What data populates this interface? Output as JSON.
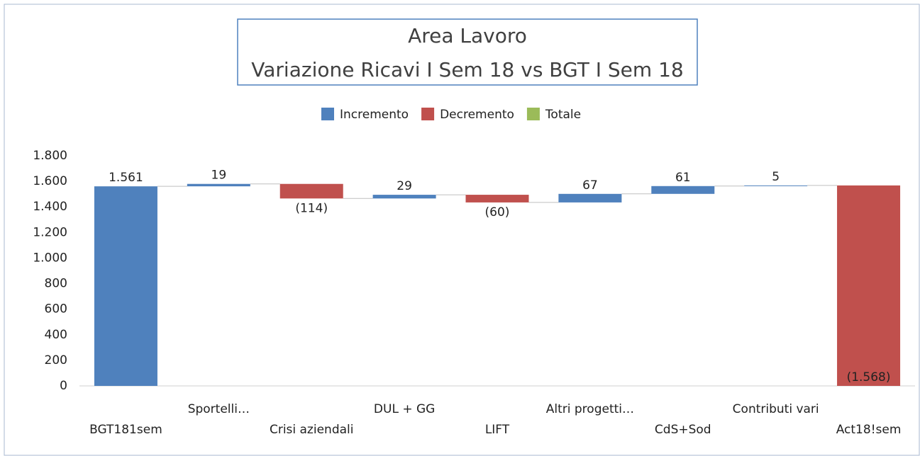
{
  "chart_data": {
    "type": "waterfall",
    "title": "Area Lavoro",
    "subtitle": "Variazione Ricavi I Sem 18 vs BGT I Sem 18",
    "legend": [
      {
        "name": "Incremento",
        "color": "#4f81bd"
      },
      {
        "name": "Decremento",
        "color": "#c0504d"
      },
      {
        "name": "Totale",
        "color": "#9bbb59"
      }
    ],
    "categories": [
      "BGT181sem",
      "Sportelli…",
      "Crisi aziendali",
      "DUL + GG",
      "LIFT",
      "Altri progetti…",
      "CdS+Sod",
      "Contributi vari",
      "Act18!sem"
    ],
    "values": [
      1561,
      19,
      -114,
      29,
      -60,
      67,
      61,
      5,
      -1568
    ],
    "value_labels": [
      "1.561",
      "19",
      "(114)",
      "29",
      "(60)",
      "67",
      "61",
      "5",
      "(1.568)"
    ],
    "ylim": [
      0,
      1800
    ],
    "yticks": [
      0,
      200,
      400,
      600,
      800,
      {
        "value": 1000,
        "label": "1.000"
      },
      {
        "value": 1200,
        "label": "1.200"
      },
      {
        "value": 1400,
        "label": "1.400"
      },
      {
        "value": 1600,
        "label": "1.600"
      },
      {
        "value": 1800,
        "label": "1.800"
      }
    ]
  }
}
